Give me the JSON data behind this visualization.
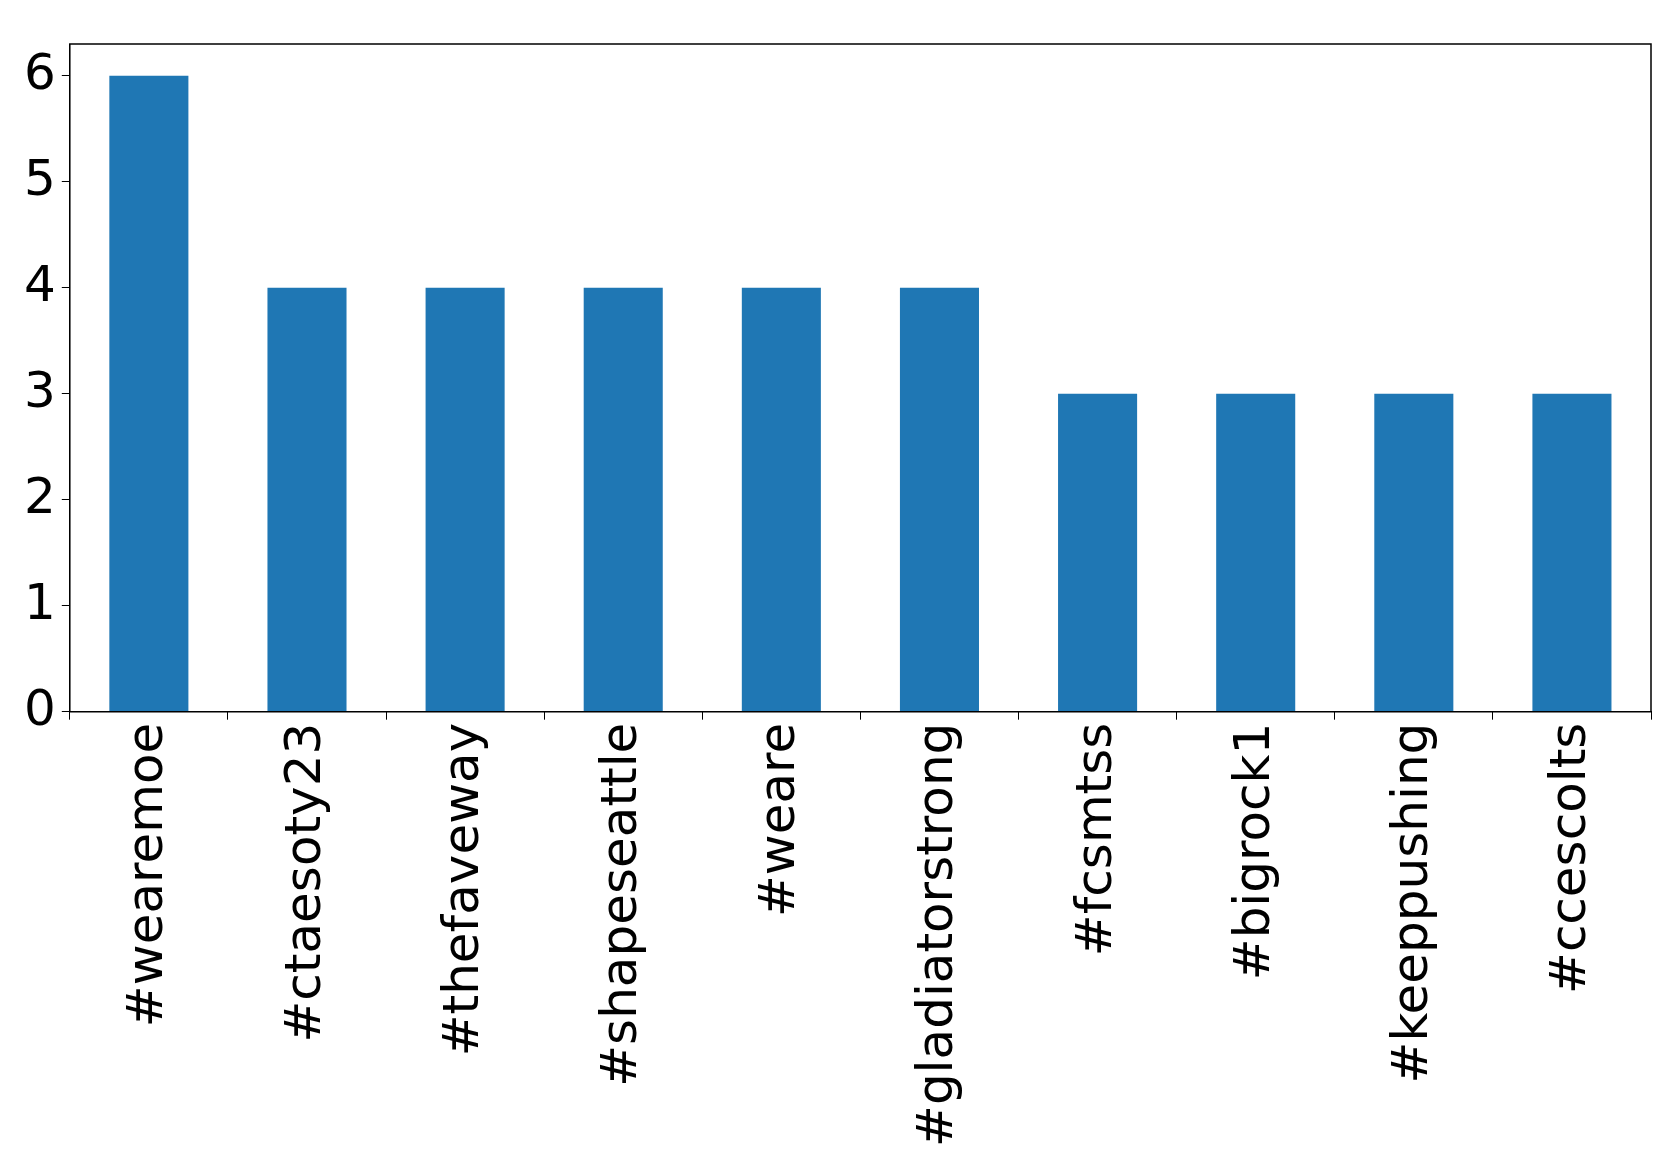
{
  "chart_data": {
    "type": "bar",
    "categories": [
      "#wearemoe",
      "#ctaesoty23",
      "#thefaveway",
      "#shapeseattle",
      "#weare",
      "#gladiatorstrong",
      "#fcsmtss",
      "#bigrock1",
      "#keeppushing",
      "#ccescolts"
    ],
    "values": [
      6,
      4,
      4,
      4,
      4,
      4,
      3,
      3,
      3,
      3
    ],
    "color": "#1f77b4",
    "ylim": [
      0,
      6.3
    ],
    "yticks": [
      0,
      1,
      2,
      3,
      4,
      5,
      6
    ],
    "grid": false,
    "legend": false
  }
}
